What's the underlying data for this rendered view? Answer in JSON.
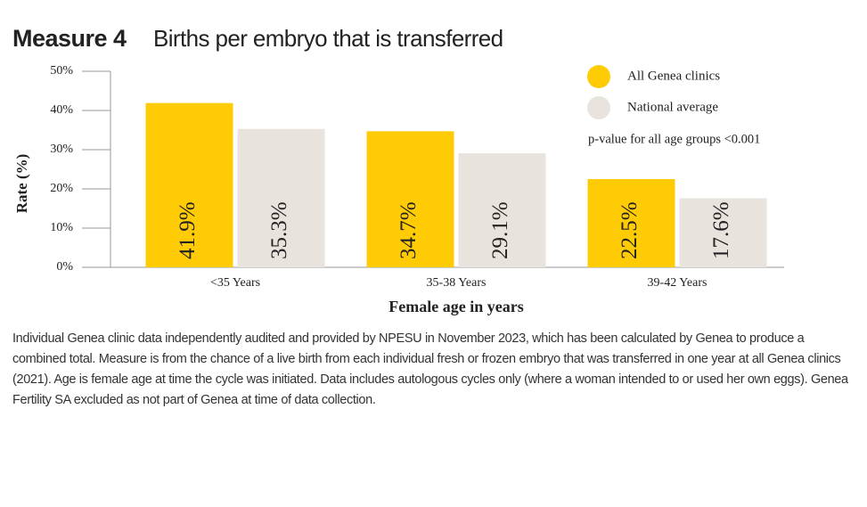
{
  "chart_data": {
    "type": "bar",
    "title": "Measure 4",
    "subtitle": "Births per embryo that is transferred",
    "y_label": "Rate (%)",
    "x_label": "Female age in years",
    "categories": [
      "<35 Years",
      "35-38 Years",
      "39-42 Years"
    ],
    "series": [
      {
        "name": "All Genea clinics",
        "color": "#ffcb05",
        "values": [
          41.9,
          34.7,
          22.5
        ],
        "value_labels": [
          "41.9%",
          "34.7%",
          "22.5%"
        ]
      },
      {
        "name": "National average",
        "color": "#e8e3dc",
        "values": [
          35.3,
          29.1,
          17.6
        ],
        "value_labels": [
          "35.3%",
          "29.1%",
          "17.6%"
        ]
      }
    ],
    "ylim": [
      0,
      50
    ],
    "yticks": [
      {
        "value": 0,
        "label": "0%"
      },
      {
        "value": 10,
        "label": "10%"
      },
      {
        "value": 20,
        "label": "20%"
      },
      {
        "value": 30,
        "label": "30%"
      },
      {
        "value": 40,
        "label": "40%"
      },
      {
        "value": 50,
        "label": "50%"
      }
    ],
    "annotation": "p-value for all age groups <0.001",
    "footnote": "Individual Genea clinic data independently audited and provided by NPESU in November 2023, which has been calculated by Genea to produce a combined total. Measure is from the chance of a live birth from each individual fresh or frozen embryo that was transferred in one year at all Genea clinics (2021). Age is female age at time the cycle was initiated. Data includes autologous cycles only (where a woman intended to or used her own eggs). Genea Fertility SA excluded as not part of Genea at time of data collection."
  }
}
